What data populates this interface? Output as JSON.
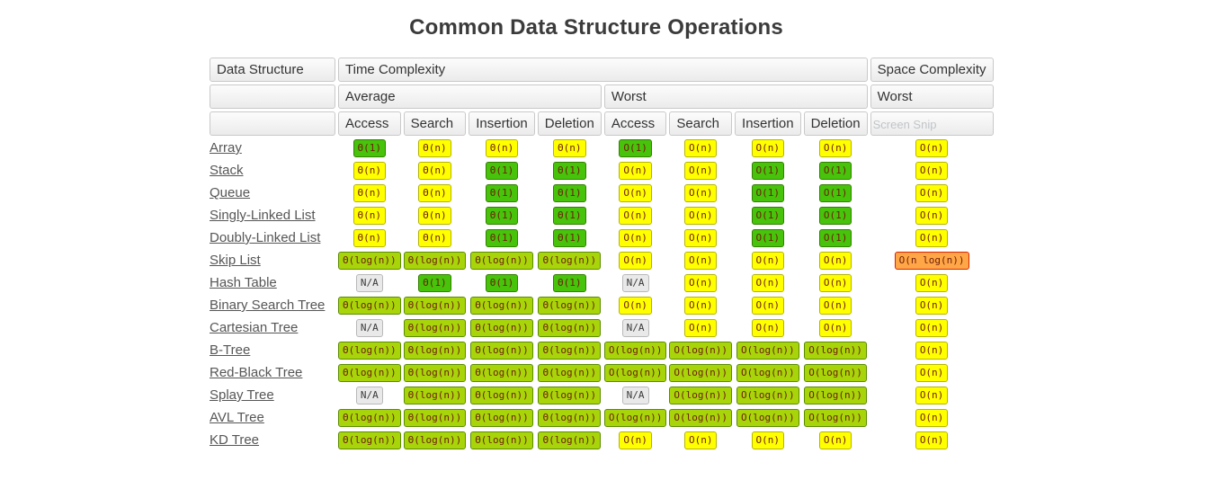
{
  "title": "Common Data Structure Operations",
  "colors": {
    "badge_green": "#46c30a",
    "badge_yellowgreen": "#a8d50a",
    "badge_yellow": "#ffff00",
    "badge_orange": "#ffa646",
    "badge_gray": "#e9e9e9",
    "badge_text": "#6e1e0a",
    "header_bg": "#ebebeb",
    "title_color": "#3b3b3b",
    "link_color": "#565656"
  },
  "table": {
    "header": {
      "data_structure": "Data Structure",
      "time_complexity": "Time Complexity",
      "space_complexity": "Space Complexity",
      "average": "Average",
      "worst": "Worst",
      "space_worst": "Worst",
      "ops": [
        "Access",
        "Search",
        "Insertion",
        "Deletion",
        "Access",
        "Search",
        "Insertion",
        "Deletion"
      ],
      "watermark": "Screen Snip"
    },
    "rows": [
      {
        "name": "Array",
        "cells": [
          {
            "t": "Θ(1)",
            "c": "green"
          },
          {
            "t": "Θ(n)",
            "c": "yellow"
          },
          {
            "t": "Θ(n)",
            "c": "yellow"
          },
          {
            "t": "Θ(n)",
            "c": "yellow"
          },
          {
            "t": "O(1)",
            "c": "green"
          },
          {
            "t": "O(n)",
            "c": "yellow"
          },
          {
            "t": "O(n)",
            "c": "yellow"
          },
          {
            "t": "O(n)",
            "c": "yellow"
          },
          {
            "t": "O(n)",
            "c": "yellow"
          }
        ]
      },
      {
        "name": "Stack",
        "cells": [
          {
            "t": "Θ(n)",
            "c": "yellow"
          },
          {
            "t": "Θ(n)",
            "c": "yellow"
          },
          {
            "t": "Θ(1)",
            "c": "green"
          },
          {
            "t": "Θ(1)",
            "c": "green"
          },
          {
            "t": "O(n)",
            "c": "yellow"
          },
          {
            "t": "O(n)",
            "c": "yellow"
          },
          {
            "t": "O(1)",
            "c": "green"
          },
          {
            "t": "O(1)",
            "c": "green"
          },
          {
            "t": "O(n)",
            "c": "yellow"
          }
        ]
      },
      {
        "name": "Queue",
        "cells": [
          {
            "t": "Θ(n)",
            "c": "yellow"
          },
          {
            "t": "Θ(n)",
            "c": "yellow"
          },
          {
            "t": "Θ(1)",
            "c": "green"
          },
          {
            "t": "Θ(1)",
            "c": "green"
          },
          {
            "t": "O(n)",
            "c": "yellow"
          },
          {
            "t": "O(n)",
            "c": "yellow"
          },
          {
            "t": "O(1)",
            "c": "green"
          },
          {
            "t": "O(1)",
            "c": "green"
          },
          {
            "t": "O(n)",
            "c": "yellow"
          }
        ]
      },
      {
        "name": "Singly-Linked List",
        "cells": [
          {
            "t": "Θ(n)",
            "c": "yellow"
          },
          {
            "t": "Θ(n)",
            "c": "yellow"
          },
          {
            "t": "Θ(1)",
            "c": "green"
          },
          {
            "t": "Θ(1)",
            "c": "green"
          },
          {
            "t": "O(n)",
            "c": "yellow"
          },
          {
            "t": "O(n)",
            "c": "yellow"
          },
          {
            "t": "O(1)",
            "c": "green"
          },
          {
            "t": "O(1)",
            "c": "green"
          },
          {
            "t": "O(n)",
            "c": "yellow"
          }
        ]
      },
      {
        "name": "Doubly-Linked List",
        "cells": [
          {
            "t": "Θ(n)",
            "c": "yellow"
          },
          {
            "t": "Θ(n)",
            "c": "yellow"
          },
          {
            "t": "Θ(1)",
            "c": "green"
          },
          {
            "t": "Θ(1)",
            "c": "green"
          },
          {
            "t": "O(n)",
            "c": "yellow"
          },
          {
            "t": "O(n)",
            "c": "yellow"
          },
          {
            "t": "O(1)",
            "c": "green"
          },
          {
            "t": "O(1)",
            "c": "green"
          },
          {
            "t": "O(n)",
            "c": "yellow"
          }
        ]
      },
      {
        "name": "Skip List",
        "cells": [
          {
            "t": "Θ(log(n))",
            "c": "yellowgreen"
          },
          {
            "t": "Θ(log(n))",
            "c": "yellowgreen"
          },
          {
            "t": "Θ(log(n))",
            "c": "yellowgreen"
          },
          {
            "t": "Θ(log(n))",
            "c": "yellowgreen"
          },
          {
            "t": "O(n)",
            "c": "yellow"
          },
          {
            "t": "O(n)",
            "c": "yellow"
          },
          {
            "t": "O(n)",
            "c": "yellow"
          },
          {
            "t": "O(n)",
            "c": "yellow"
          },
          {
            "t": "O(n log(n))",
            "c": "orange"
          }
        ]
      },
      {
        "name": "Hash Table",
        "cells": [
          {
            "t": "N/A",
            "c": "gray"
          },
          {
            "t": "Θ(1)",
            "c": "green"
          },
          {
            "t": "Θ(1)",
            "c": "green"
          },
          {
            "t": "Θ(1)",
            "c": "green"
          },
          {
            "t": "N/A",
            "c": "gray"
          },
          {
            "t": "O(n)",
            "c": "yellow"
          },
          {
            "t": "O(n)",
            "c": "yellow"
          },
          {
            "t": "O(n)",
            "c": "yellow"
          },
          {
            "t": "O(n)",
            "c": "yellow"
          }
        ]
      },
      {
        "name": "Binary Search Tree",
        "cells": [
          {
            "t": "Θ(log(n))",
            "c": "yellowgreen"
          },
          {
            "t": "Θ(log(n))",
            "c": "yellowgreen"
          },
          {
            "t": "Θ(log(n))",
            "c": "yellowgreen"
          },
          {
            "t": "Θ(log(n))",
            "c": "yellowgreen"
          },
          {
            "t": "O(n)",
            "c": "yellow"
          },
          {
            "t": "O(n)",
            "c": "yellow"
          },
          {
            "t": "O(n)",
            "c": "yellow"
          },
          {
            "t": "O(n)",
            "c": "yellow"
          },
          {
            "t": "O(n)",
            "c": "yellow"
          }
        ]
      },
      {
        "name": "Cartesian Tree",
        "cells": [
          {
            "t": "N/A",
            "c": "gray"
          },
          {
            "t": "Θ(log(n))",
            "c": "yellowgreen"
          },
          {
            "t": "Θ(log(n))",
            "c": "yellowgreen"
          },
          {
            "t": "Θ(log(n))",
            "c": "yellowgreen"
          },
          {
            "t": "N/A",
            "c": "gray"
          },
          {
            "t": "O(n)",
            "c": "yellow"
          },
          {
            "t": "O(n)",
            "c": "yellow"
          },
          {
            "t": "O(n)",
            "c": "yellow"
          },
          {
            "t": "O(n)",
            "c": "yellow"
          }
        ]
      },
      {
        "name": "B-Tree",
        "cells": [
          {
            "t": "Θ(log(n))",
            "c": "yellowgreen"
          },
          {
            "t": "Θ(log(n))",
            "c": "yellowgreen"
          },
          {
            "t": "Θ(log(n))",
            "c": "yellowgreen"
          },
          {
            "t": "Θ(log(n))",
            "c": "yellowgreen"
          },
          {
            "t": "O(log(n))",
            "c": "yellowgreen"
          },
          {
            "t": "O(log(n))",
            "c": "yellowgreen"
          },
          {
            "t": "O(log(n))",
            "c": "yellowgreen"
          },
          {
            "t": "O(log(n))",
            "c": "yellowgreen"
          },
          {
            "t": "O(n)",
            "c": "yellow"
          }
        ]
      },
      {
        "name": "Red-Black Tree",
        "cells": [
          {
            "t": "Θ(log(n))",
            "c": "yellowgreen"
          },
          {
            "t": "Θ(log(n))",
            "c": "yellowgreen"
          },
          {
            "t": "Θ(log(n))",
            "c": "yellowgreen"
          },
          {
            "t": "Θ(log(n))",
            "c": "yellowgreen"
          },
          {
            "t": "O(log(n))",
            "c": "yellowgreen"
          },
          {
            "t": "O(log(n))",
            "c": "yellowgreen"
          },
          {
            "t": "O(log(n))",
            "c": "yellowgreen"
          },
          {
            "t": "O(log(n))",
            "c": "yellowgreen"
          },
          {
            "t": "O(n)",
            "c": "yellow"
          }
        ]
      },
      {
        "name": "Splay Tree",
        "cells": [
          {
            "t": "N/A",
            "c": "gray"
          },
          {
            "t": "Θ(log(n))",
            "c": "yellowgreen"
          },
          {
            "t": "Θ(log(n))",
            "c": "yellowgreen"
          },
          {
            "t": "Θ(log(n))",
            "c": "yellowgreen"
          },
          {
            "t": "N/A",
            "c": "gray"
          },
          {
            "t": "O(log(n))",
            "c": "yellowgreen"
          },
          {
            "t": "O(log(n))",
            "c": "yellowgreen"
          },
          {
            "t": "O(log(n))",
            "c": "yellowgreen"
          },
          {
            "t": "O(n)",
            "c": "yellow"
          }
        ]
      },
      {
        "name": "AVL Tree",
        "cells": [
          {
            "t": "Θ(log(n))",
            "c": "yellowgreen"
          },
          {
            "t": "Θ(log(n))",
            "c": "yellowgreen"
          },
          {
            "t": "Θ(log(n))",
            "c": "yellowgreen"
          },
          {
            "t": "Θ(log(n))",
            "c": "yellowgreen"
          },
          {
            "t": "O(log(n))",
            "c": "yellowgreen"
          },
          {
            "t": "O(log(n))",
            "c": "yellowgreen"
          },
          {
            "t": "O(log(n))",
            "c": "yellowgreen"
          },
          {
            "t": "O(log(n))",
            "c": "yellowgreen"
          },
          {
            "t": "O(n)",
            "c": "yellow"
          }
        ]
      },
      {
        "name": "KD Tree",
        "cells": [
          {
            "t": "Θ(log(n))",
            "c": "yellowgreen"
          },
          {
            "t": "Θ(log(n))",
            "c": "yellowgreen"
          },
          {
            "t": "Θ(log(n))",
            "c": "yellowgreen"
          },
          {
            "t": "Θ(log(n))",
            "c": "yellowgreen"
          },
          {
            "t": "O(n)",
            "c": "yellow"
          },
          {
            "t": "O(n)",
            "c": "yellow"
          },
          {
            "t": "O(n)",
            "c": "yellow"
          },
          {
            "t": "O(n)",
            "c": "yellow"
          },
          {
            "t": "O(n)",
            "c": "yellow"
          }
        ]
      }
    ]
  }
}
